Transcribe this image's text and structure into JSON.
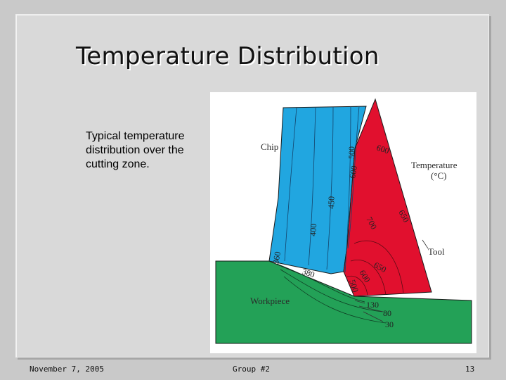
{
  "slide": {
    "title": "Temperature Distribution",
    "caption": "Typical temperature distribution over the cutting zone.",
    "footer": {
      "date": "November 7, 2005",
      "group": "Group #2",
      "page_number": "13"
    }
  },
  "figure": {
    "labels": {
      "chip": "Chip",
      "temperature_line1": "Temperature",
      "temperature_line2": "(°C)",
      "tool": "Tool",
      "workpiece": "Workpiece"
    },
    "isotherms": {
      "chip_500": "500",
      "chip_600": "600",
      "chip_450": "450",
      "chip_400": "400",
      "chip_360": "360",
      "chip_380": "380",
      "tool_600": "600",
      "tool_700": "700",
      "tool_650": "650",
      "tool_650_lower": "650",
      "tool_600_lower": "600",
      "tool_500_lower": "500",
      "work_130": "130",
      "work_80": "80",
      "work_30": "30"
    },
    "colors": {
      "chip": "#21a6e0",
      "tool": "#e1102e",
      "workpiece": "#23a157"
    }
  }
}
